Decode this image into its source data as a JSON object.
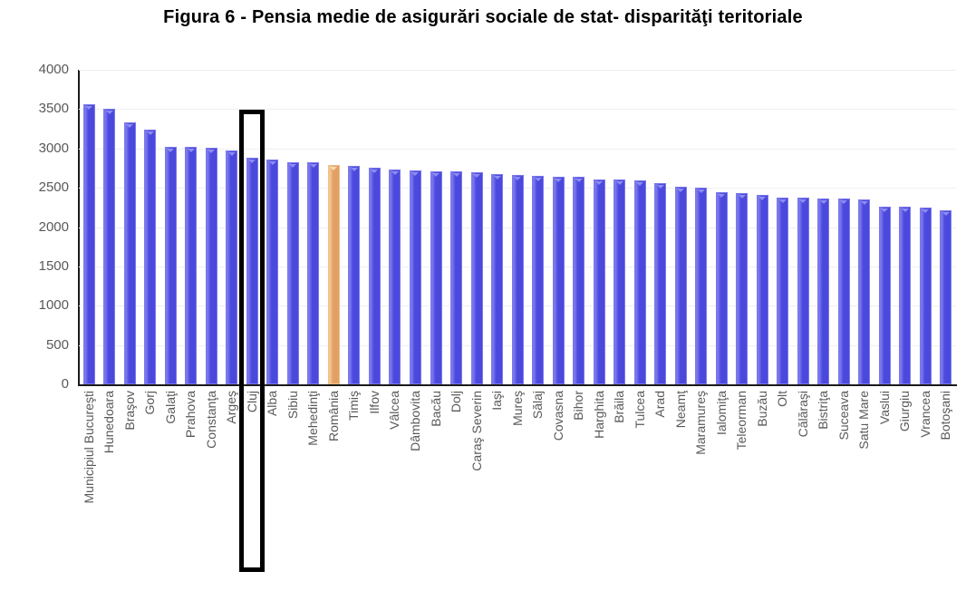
{
  "chart_data": {
    "type": "bar",
    "title": "Figura 6 - Pensia medie de asigurări sociale de stat- disparităţi teritoriale",
    "categories": [
      "Municipiul Bucureşti",
      "Hunedoara",
      "Braşov",
      "Gorj",
      "Galaţi",
      "Prahova",
      "Constanţa",
      "Argeş",
      "Cluj",
      "Alba",
      "Sibiu",
      "Mehedinţi",
      "România",
      "Timiş",
      "Ilfov",
      "Vâlcea",
      "Dâmbovita",
      "Bacău",
      "Dolj",
      "Caraş Severin",
      "Iaşi",
      "Mureş",
      "Sălaj",
      "Covasna",
      "Bihor",
      "Harghita",
      "Brăila",
      "Tulcea",
      "Arad",
      "Neamţ",
      "Maramureş",
      "Ialomiţa",
      "Teleorman",
      "Buzău",
      "Olt",
      "Călăraşi",
      "Bistriţa",
      "Suceava",
      "Satu Mare",
      "Vaslui",
      "Giurgiu",
      "Vrancea",
      "Botoşani"
    ],
    "values": [
      3565,
      3500,
      3330,
      3240,
      3020,
      3015,
      3010,
      2980,
      2880,
      2855,
      2830,
      2820,
      2790,
      2780,
      2750,
      2730,
      2720,
      2715,
      2705,
      2695,
      2675,
      2665,
      2650,
      2645,
      2640,
      2605,
      2600,
      2590,
      2565,
      2510,
      2500,
      2450,
      2435,
      2415,
      2375,
      2370,
      2365,
      2360,
      2350,
      2265,
      2260,
      2245,
      2210
    ],
    "xlabel": "",
    "ylabel": "",
    "ylim": [
      0,
      4000
    ],
    "yticks": [
      0,
      500,
      1000,
      1500,
      2000,
      2500,
      3000,
      3500,
      4000
    ],
    "grid": "horizontal",
    "legend": "none",
    "bar_style": {
      "fill": "#4B48DE",
      "fill_light": "#7A78EC",
      "cap": "#8E8CF0",
      "border": "#7B79EA"
    },
    "highlighted_bar": {
      "category": "România",
      "fill": "#E2A164",
      "fill_light": "#F2C592",
      "cap": "#F7DDAE",
      "border": "#EFBF8E"
    },
    "annotation_box": {
      "category": "Cluj",
      "border_color": "#000000"
    },
    "colors": {
      "axis": "#1A1A1A",
      "gridline": "#EFEFEF",
      "tick_labels": "#595959",
      "title": "#000000"
    }
  }
}
